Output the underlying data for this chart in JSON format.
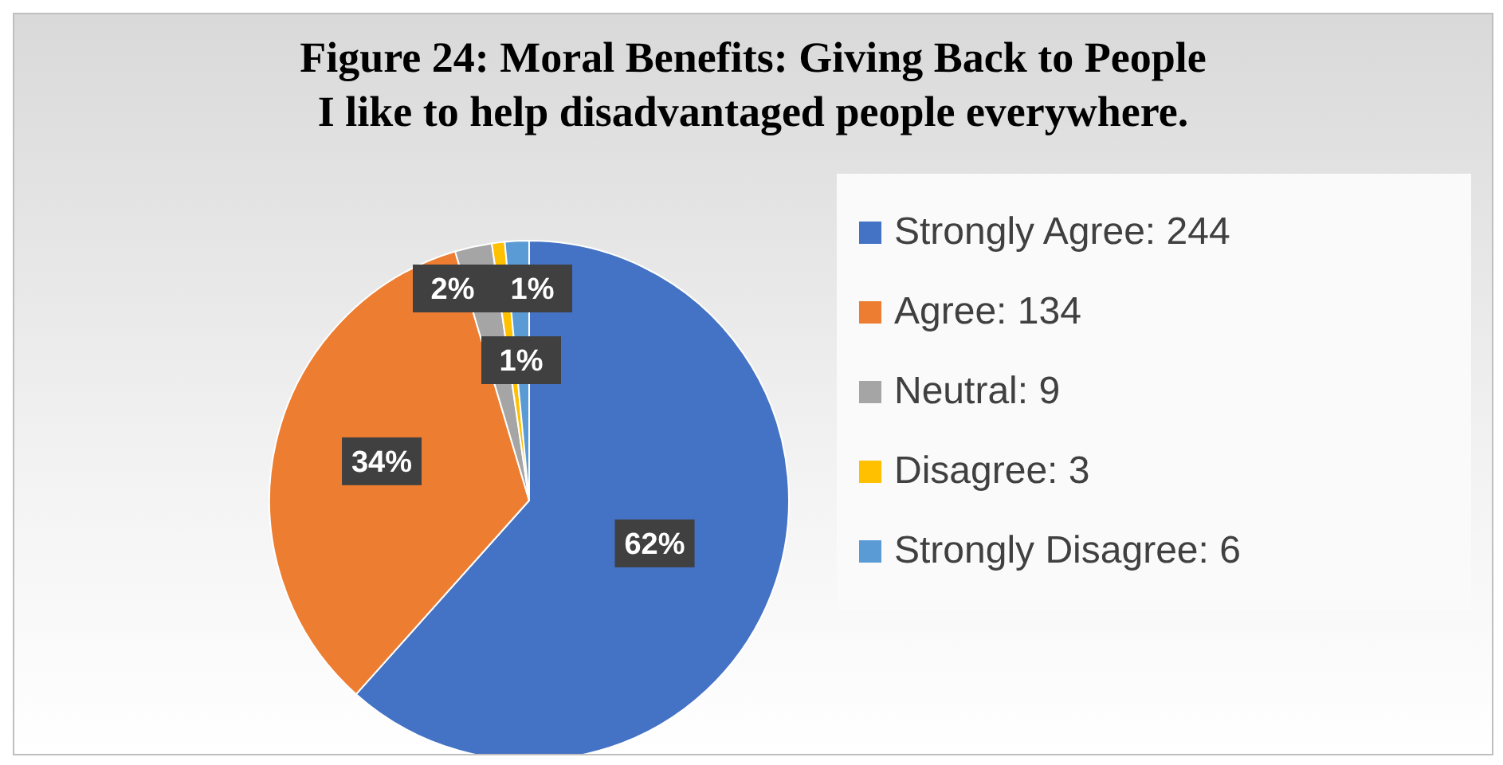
{
  "chart_data": {
    "type": "pie",
    "title": "Figure 24: Moral Benefits: Giving Back to People\nI like to help disadvantaged people everywhere.",
    "categories": [
      "Strongly Agree: 244",
      "Agree: 134",
      "Neutral: 9",
      "Disagree: 3",
      "Strongly Disagree: 6"
    ],
    "values": [
      61.6,
      33.8,
      2.3,
      0.8,
      1.5
    ],
    "colors": [
      "#4472c4",
      "#ed7d31",
      "#a5a5a5",
      "#ffc000",
      "#5b9bd5"
    ],
    "value_labels": [
      "62%",
      "34%",
      "2%",
      "1%",
      "1%"
    ],
    "legend": "right"
  }
}
